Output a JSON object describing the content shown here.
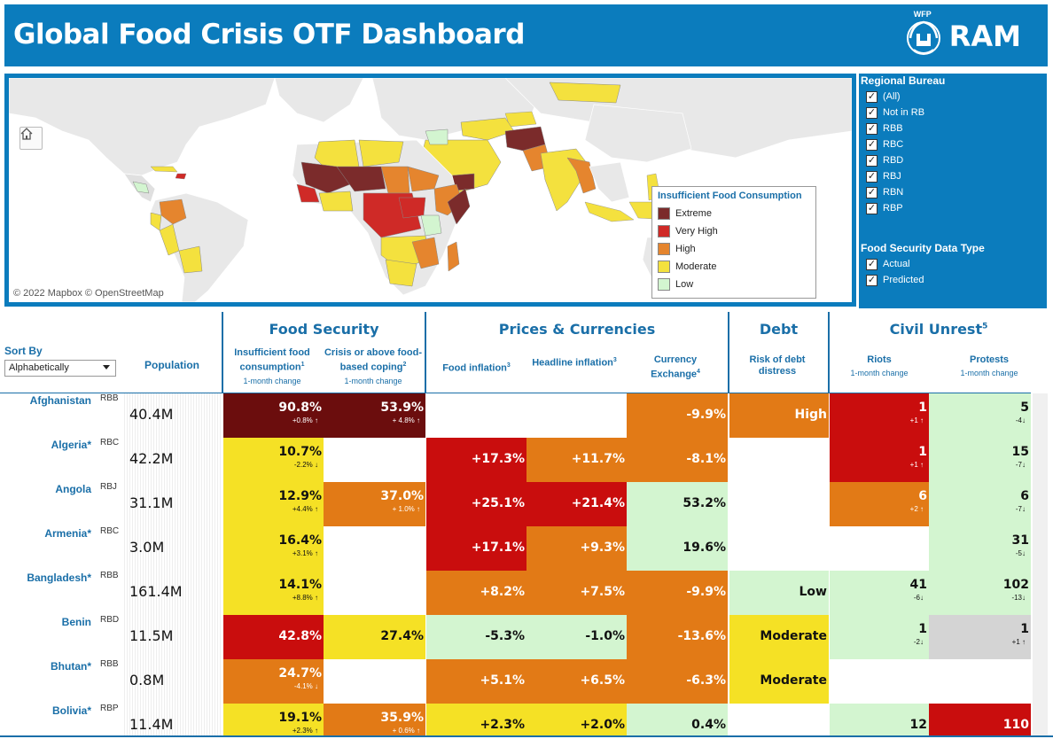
{
  "header": {
    "title": "Global Food Crisis OTF Dashboard",
    "logo_small": "WFP",
    "logo_text": "RAM"
  },
  "map": {
    "attribution": "© 2022 Mapbox  © OpenStreetMap",
    "legend_title": "Insufficient Food Consumption",
    "legend": [
      {
        "label": "Extreme",
        "color": "#7b2b2b"
      },
      {
        "label": "Very High",
        "color": "#cf2a27"
      },
      {
        "label": "High",
        "color": "#e5852e"
      },
      {
        "label": "Moderate",
        "color": "#f4e13e"
      },
      {
        "label": "Low",
        "color": "#d3f5d0"
      }
    ]
  },
  "filters": {
    "regional_bureau": {
      "title": "Regional Bureau",
      "items": [
        "(All)",
        "Not in RB",
        "RBB",
        "RBC",
        "RBD",
        "RBJ",
        "RBN",
        "RBP"
      ]
    },
    "data_type": {
      "title": "Food Security Data Type",
      "items": [
        "Actual",
        "Predicted"
      ]
    }
  },
  "table": {
    "sort_label": "Sort By",
    "sort_value": "Alphabetically",
    "groups": {
      "food_security": "Food Security",
      "prices": "Prices & Currencies",
      "debt": "Debt",
      "unrest": "Civil Unrest",
      "unrest_sup": "5"
    },
    "columns": {
      "population": "Population",
      "ifc": "Insufficient food consumption",
      "ifc_sup": "1",
      "ifc_sub": "1-month change",
      "coping": "Crisis or above food-based coping",
      "coping_sup": "2",
      "coping_sub": "1-month change",
      "food_infl": "Food inflation",
      "food_infl_sup": "3",
      "headline": "Headline inflation",
      "headline_sup": "3",
      "currency": "Currency Exchange",
      "currency_sup": "4",
      "debt": "Risk of debt distress",
      "riots": "Riots",
      "riots_sub": "1-month change",
      "protests": "Protests",
      "protests_sub": "1-month change"
    },
    "rows": [
      {
        "name": "Afghanistan",
        "rb": "RBB",
        "pop": "40.4M",
        "ifc": "90.8%",
        "ifc_d": "+0.8% ↑",
        "ifc_c": "#6b0d0d",
        "cop": "53.9%",
        "cop_d": "+ 4.8% ↑",
        "cop_c": "#6b0d0d",
        "fi": "",
        "fi_c": "#ffffff",
        "hi": "",
        "hi_c": "#ffffff",
        "cx": "-9.9%",
        "cx_c": "#e27a16",
        "debt": "High",
        "debt_c": "#e27a16",
        "riots": "1",
        "riots_d": "+1 ↑",
        "riots_c": "#c90d0d",
        "prot": "5",
        "prot_d": "-4↓",
        "prot_c": "#d3f5d0"
      },
      {
        "name": "Algeria*",
        "rb": "RBC",
        "pop": "42.2M",
        "ifc": "10.7%",
        "ifc_d": "-2.2% ↓",
        "ifc_c": "#f5e125",
        "cop": "",
        "cop_d": "",
        "cop_c": "#ffffff",
        "fi": "+17.3%",
        "fi_c": "#c90d0d",
        "hi": "+11.7%",
        "hi_c": "#e27a16",
        "cx": "-8.1%",
        "cx_c": "#e27a16",
        "debt": "",
        "debt_c": "#ffffff",
        "riots": "1",
        "riots_d": "+1 ↑",
        "riots_c": "#c90d0d",
        "prot": "15",
        "prot_d": "-7↓",
        "prot_c": "#d3f5d0"
      },
      {
        "name": "Angola",
        "rb": "RBJ",
        "pop": "31.1M",
        "ifc": "12.9%",
        "ifc_d": "+4.4% ↑",
        "ifc_c": "#f5e125",
        "cop": "37.0%",
        "cop_d": "+ 1.0% ↑",
        "cop_c": "#e27a16",
        "fi": "+25.1%",
        "fi_c": "#c90d0d",
        "hi": "+21.4%",
        "hi_c": "#c90d0d",
        "cx": "53.2%",
        "cx_c": "#d3f5d0",
        "debt": "",
        "debt_c": "#ffffff",
        "riots": "6",
        "riots_d": "+2 ↑",
        "riots_c": "#e27a16",
        "prot": "6",
        "prot_d": "-7↓",
        "prot_c": "#d3f5d0"
      },
      {
        "name": "Armenia*",
        "rb": "RBC",
        "pop": "3.0M",
        "ifc": "16.4%",
        "ifc_d": "+3.1% ↑",
        "ifc_c": "#f5e125",
        "cop": "",
        "cop_d": "",
        "cop_c": "#ffffff",
        "fi": "+17.1%",
        "fi_c": "#c90d0d",
        "hi": "+9.3%",
        "hi_c": "#e27a16",
        "cx": "19.6%",
        "cx_c": "#d3f5d0",
        "debt": "",
        "debt_c": "#ffffff",
        "riots": "",
        "riots_d": "",
        "riots_c": "#ffffff",
        "prot": "31",
        "prot_d": "-5↓",
        "prot_c": "#d3f5d0"
      },
      {
        "name": "Bangladesh*",
        "rb": "RBB",
        "pop": "161.4M",
        "ifc": "14.1%",
        "ifc_d": "+8.8% ↑",
        "ifc_c": "#f5e125",
        "cop": "",
        "cop_d": "",
        "cop_c": "#ffffff",
        "fi": "+8.2%",
        "fi_c": "#e27a16",
        "hi": "+7.5%",
        "hi_c": "#e27a16",
        "cx": "-9.9%",
        "cx_c": "#e27a16",
        "debt": "Low",
        "debt_c": "#d3f5d0",
        "riots": "41",
        "riots_d": "-6↓",
        "riots_c": "#d3f5d0",
        "prot": "102",
        "prot_d": "-13↓",
        "prot_c": "#d3f5d0"
      },
      {
        "name": "Benin",
        "rb": "RBD",
        "pop": "11.5M",
        "ifc": "42.8%",
        "ifc_d": "",
        "ifc_c": "#c90d0d",
        "cop": "27.4%",
        "cop_d": "",
        "cop_c": "#f5e125",
        "fi": "-5.3%",
        "fi_c": "#d3f5d0",
        "hi": "-1.0%",
        "hi_c": "#d3f5d0",
        "cx": "-13.6%",
        "cx_c": "#e27a16",
        "debt": "Moderate",
        "debt_c": "#f5e125",
        "riots": "1",
        "riots_d": "-2↓",
        "riots_c": "#d3f5d0",
        "prot": "1",
        "prot_d": "+1 ↑",
        "prot_c": "#d4d4d4"
      },
      {
        "name": "Bhutan*",
        "rb": "RBB",
        "pop": "0.8M",
        "ifc": "24.7%",
        "ifc_d": "-4.1% ↓",
        "ifc_c": "#e27a16",
        "cop": "",
        "cop_d": "",
        "cop_c": "#ffffff",
        "fi": "+5.1%",
        "fi_c": "#e27a16",
        "hi": "+6.5%",
        "hi_c": "#e27a16",
        "cx": "-6.3%",
        "cx_c": "#e27a16",
        "debt": "Moderate",
        "debt_c": "#f5e125",
        "riots": "",
        "riots_d": "",
        "riots_c": "#ffffff",
        "prot": "",
        "prot_d": "",
        "prot_c": "#ffffff"
      },
      {
        "name": "Bolivia*",
        "rb": "RBP",
        "pop": "11.4M",
        "ifc": "19.1%",
        "ifc_d": "+2.3% ↑",
        "ifc_c": "#f5e125",
        "cop": "35.9%",
        "cop_d": "+ 0.6% ↑",
        "cop_c": "#e27a16",
        "fi": "+2.3%",
        "fi_c": "#f5e125",
        "hi": "+2.0%",
        "hi_c": "#f5e125",
        "cx": "0.4%",
        "cx_c": "#d3f5d0",
        "debt": "",
        "debt_c": "#ffffff",
        "riots": "12",
        "riots_d": "",
        "riots_c": "#d3f5d0",
        "prot": "110",
        "prot_d": "",
        "prot_c": "#c90d0d"
      }
    ]
  }
}
